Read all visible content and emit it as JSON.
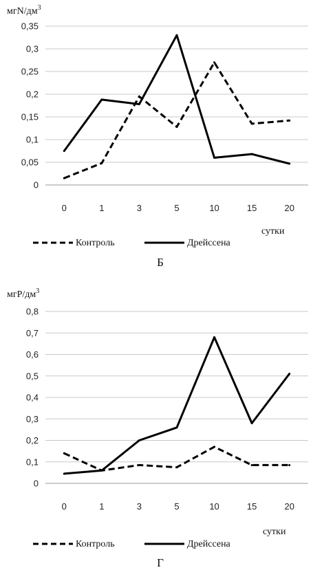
{
  "chart_data": [
    {
      "type": "line",
      "panel_label": "Б",
      "ylabel": "мгN/дм",
      "ylabel_sup": "3",
      "xlabel": "сутки",
      "categories": [
        "0",
        "1",
        "3",
        "5",
        "10",
        "15",
        "20"
      ],
      "ylim": [
        0,
        0.35
      ],
      "yticks": [
        "0",
        "0,05",
        "0,1",
        "0,15",
        "0,2",
        "0,25",
        "0,3",
        "0,35"
      ],
      "grid": true,
      "legend_position": "bottom",
      "series": [
        {
          "name": "Контроль",
          "style": "dashed",
          "values": [
            0.015,
            0.048,
            0.195,
            0.128,
            0.27,
            0.135,
            0.142
          ]
        },
        {
          "name": "Дрейссена",
          "style": "solid",
          "values": [
            0.075,
            0.188,
            0.178,
            0.33,
            0.06,
            0.068,
            0.047
          ]
        }
      ]
    },
    {
      "type": "line",
      "panel_label": "Г",
      "ylabel": "мгP/дм",
      "ylabel_sup": "3",
      "xlabel": "сутки",
      "categories": [
        "0",
        "1",
        "3",
        "5",
        "10",
        "15",
        "20"
      ],
      "ylim": [
        0,
        0.8
      ],
      "yticks": [
        "0",
        "0,1",
        "0,2",
        "0,3",
        "0,4",
        "0,5",
        "0,6",
        "0,7",
        "0,8"
      ],
      "grid": true,
      "legend_position": "bottom",
      "series": [
        {
          "name": "Контроль",
          "style": "dashed",
          "values": [
            0.14,
            0.06,
            0.085,
            0.075,
            0.17,
            0.085,
            0.085
          ]
        },
        {
          "name": "Дрейссена",
          "style": "solid",
          "values": [
            0.045,
            0.06,
            0.2,
            0.26,
            0.68,
            0.28,
            0.51
          ]
        }
      ]
    }
  ]
}
